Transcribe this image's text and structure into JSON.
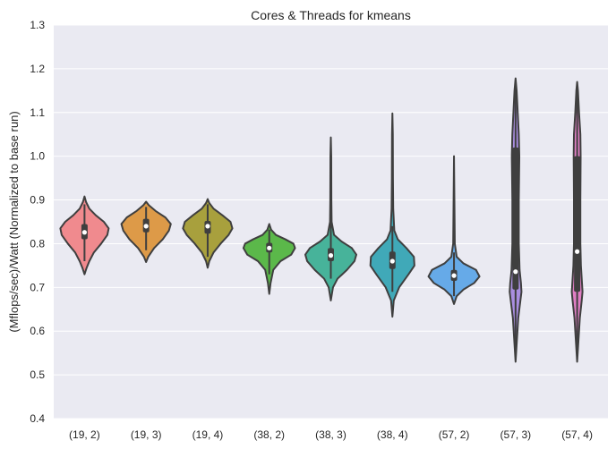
{
  "chart_data": {
    "type": "violin",
    "title": "Cores & Threads for kmeans",
    "xlabel": "",
    "ylabel": "(Mflops/sec)/Watt (Normalized to base run)",
    "ylim": [
      0.4,
      1.3
    ],
    "yticks": [
      "0.4",
      "0.5",
      "0.6",
      "0.7",
      "0.8",
      "0.9",
      "1.0",
      "1.1",
      "1.2",
      "1.3"
    ],
    "grid": true,
    "categories": [
      "(19, 2)",
      "(19, 3)",
      "(19, 4)",
      "(38, 2)",
      "(38, 3)",
      "(38, 4)",
      "(57, 2)",
      "(57, 3)",
      "(57, 4)"
    ],
    "violins": [
      {
        "color": "#f08a8e",
        "median": 0.826,
        "q1": 0.81,
        "q3": 0.845,
        "whisker_low": 0.76,
        "whisker_high": 0.89,
        "profile": [
          [
            0.73,
            0.0
          ],
          [
            0.745,
            0.08
          ],
          [
            0.76,
            0.18
          ],
          [
            0.78,
            0.35
          ],
          [
            0.8,
            0.62
          ],
          [
            0.82,
            0.85
          ],
          [
            0.835,
            0.9
          ],
          [
            0.85,
            0.72
          ],
          [
            0.865,
            0.42
          ],
          [
            0.88,
            0.18
          ],
          [
            0.895,
            0.06
          ],
          [
            0.908,
            0.0
          ]
        ]
      },
      {
        "color": "#dd9a48",
        "median": 0.84,
        "q1": 0.826,
        "q3": 0.857,
        "whisker_low": 0.785,
        "whisker_high": 0.884,
        "profile": [
          [
            0.758,
            0.0
          ],
          [
            0.77,
            0.08
          ],
          [
            0.79,
            0.3
          ],
          [
            0.81,
            0.62
          ],
          [
            0.83,
            0.85
          ],
          [
            0.845,
            0.92
          ],
          [
            0.86,
            0.72
          ],
          [
            0.875,
            0.35
          ],
          [
            0.888,
            0.1
          ],
          [
            0.896,
            0.0
          ]
        ]
      },
      {
        "color": "#a8a03d",
        "median": 0.84,
        "q1": 0.823,
        "q3": 0.852,
        "whisker_low": 0.77,
        "whisker_high": 0.89,
        "profile": [
          [
            0.745,
            0.0
          ],
          [
            0.76,
            0.06
          ],
          [
            0.78,
            0.22
          ],
          [
            0.8,
            0.48
          ],
          [
            0.82,
            0.78
          ],
          [
            0.835,
            0.92
          ],
          [
            0.85,
            0.85
          ],
          [
            0.865,
            0.55
          ],
          [
            0.88,
            0.22
          ],
          [
            0.893,
            0.06
          ],
          [
            0.902,
            0.0
          ]
        ]
      },
      {
        "color": "#5bb84a",
        "median": 0.79,
        "q1": 0.78,
        "q3": 0.802,
        "whisker_low": 0.73,
        "whisker_high": 0.832,
        "profile": [
          [
            0.685,
            0.0
          ],
          [
            0.71,
            0.05
          ],
          [
            0.74,
            0.15
          ],
          [
            0.76,
            0.42
          ],
          [
            0.775,
            0.82
          ],
          [
            0.79,
            0.96
          ],
          [
            0.8,
            0.9
          ],
          [
            0.81,
            0.6
          ],
          [
            0.82,
            0.25
          ],
          [
            0.832,
            0.07
          ],
          [
            0.845,
            0.0
          ]
        ]
      },
      {
        "color": "#47b39a",
        "median": 0.773,
        "q1": 0.76,
        "q3": 0.79,
        "whisker_low": 0.72,
        "whisker_high": 0.86,
        "profile": [
          [
            0.67,
            0.0
          ],
          [
            0.7,
            0.08
          ],
          [
            0.72,
            0.25
          ],
          [
            0.74,
            0.6
          ],
          [
            0.76,
            0.88
          ],
          [
            0.775,
            0.95
          ],
          [
            0.79,
            0.78
          ],
          [
            0.805,
            0.4
          ],
          [
            0.82,
            0.12
          ],
          [
            0.85,
            0.03
          ],
          [
            0.9,
            0.02
          ],
          [
            1.0,
            0.015
          ],
          [
            1.043,
            0.0
          ]
        ]
      },
      {
        "color": "#40a9b8",
        "median": 0.76,
        "q1": 0.742,
        "q3": 0.782,
        "whisker_low": 0.69,
        "whisker_high": 0.84,
        "profile": [
          [
            0.633,
            0.0
          ],
          [
            0.67,
            0.05
          ],
          [
            0.7,
            0.25
          ],
          [
            0.73,
            0.6
          ],
          [
            0.75,
            0.82
          ],
          [
            0.77,
            0.8
          ],
          [
            0.79,
            0.52
          ],
          [
            0.81,
            0.2
          ],
          [
            0.83,
            0.07
          ],
          [
            0.88,
            0.03
          ],
          [
            0.95,
            0.02
          ],
          [
            1.05,
            0.015
          ],
          [
            1.098,
            0.0
          ]
        ]
      },
      {
        "color": "#66aae8",
        "median": 0.727,
        "q1": 0.715,
        "q3": 0.74,
        "whisker_low": 0.68,
        "whisker_high": 0.78,
        "profile": [
          [
            0.662,
            0.0
          ],
          [
            0.68,
            0.1
          ],
          [
            0.695,
            0.35
          ],
          [
            0.71,
            0.75
          ],
          [
            0.725,
            0.95
          ],
          [
            0.74,
            0.82
          ],
          [
            0.755,
            0.35
          ],
          [
            0.77,
            0.1
          ],
          [
            0.8,
            0.03
          ],
          [
            0.9,
            0.015
          ],
          [
            1.0,
            0.0
          ]
        ]
      },
      {
        "color": "#a98ee0",
        "median": 0.736,
        "q1": 0.695,
        "q3": 1.02,
        "whisker_low": 0.54,
        "whisker_high": 1.17,
        "profile": [
          [
            0.53,
            0.0
          ],
          [
            0.58,
            0.05
          ],
          [
            0.63,
            0.1
          ],
          [
            0.67,
            0.18
          ],
          [
            0.69,
            0.22
          ],
          [
            0.71,
            0.2
          ],
          [
            0.74,
            0.15
          ],
          [
            0.8,
            0.12
          ],
          [
            0.9,
            0.12
          ],
          [
            1.0,
            0.14
          ],
          [
            1.05,
            0.12
          ],
          [
            1.1,
            0.08
          ],
          [
            1.15,
            0.04
          ],
          [
            1.178,
            0.0
          ]
        ]
      },
      {
        "color": "#e07ec4",
        "median": 0.782,
        "q1": 0.69,
        "q3": 1.0,
        "whisker_low": 0.545,
        "whisker_high": 1.16,
        "profile": [
          [
            0.53,
            0.0
          ],
          [
            0.58,
            0.05
          ],
          [
            0.63,
            0.1
          ],
          [
            0.67,
            0.17
          ],
          [
            0.69,
            0.2
          ],
          [
            0.71,
            0.18
          ],
          [
            0.75,
            0.14
          ],
          [
            0.8,
            0.12
          ],
          [
            0.9,
            0.12
          ],
          [
            1.0,
            0.13
          ],
          [
            1.05,
            0.12
          ],
          [
            1.1,
            0.07
          ],
          [
            1.15,
            0.03
          ],
          [
            1.17,
            0.0
          ]
        ]
      }
    ]
  }
}
